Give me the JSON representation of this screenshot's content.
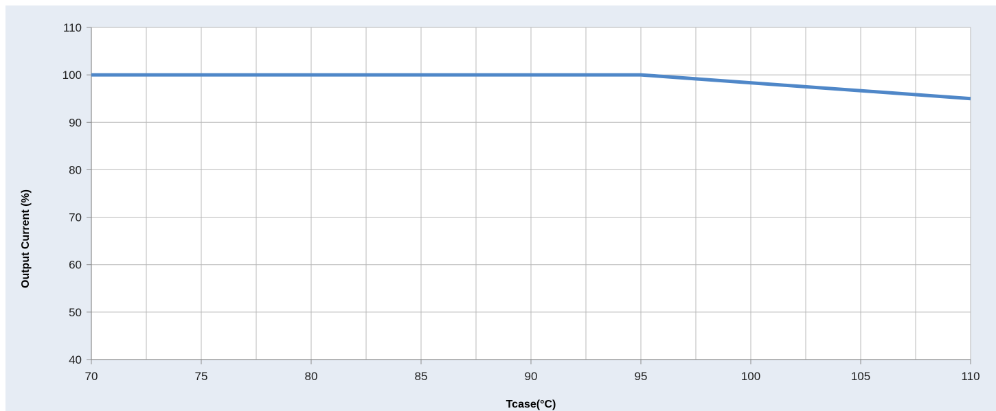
{
  "chart_data": {
    "type": "line",
    "title": "",
    "xlabel": "Tcase(°C)",
    "ylabel": "Output Current (%)",
    "xlim": [
      70,
      110
    ],
    "ylim": [
      40,
      110
    ],
    "xticks": [
      70,
      75,
      80,
      85,
      90,
      95,
      100,
      105,
      110
    ],
    "yticks": [
      40,
      50,
      60,
      70,
      80,
      90,
      100,
      110
    ],
    "x_minor_gridlines": [
      72.5,
      77.5,
      82.5,
      87.5,
      92.5,
      97.5,
      102.5,
      107.5
    ],
    "y_minor_gridlines": [],
    "grid": true,
    "legend": "none",
    "series": [
      {
        "x": [
          70,
          95,
          110
        ],
        "y": [
          100,
          100,
          95
        ]
      }
    ],
    "colors": {
      "background": "#e6ecf4",
      "plot_area": "#ffffff",
      "grid": "#b8b8b8",
      "series": "#4f87c8"
    }
  }
}
